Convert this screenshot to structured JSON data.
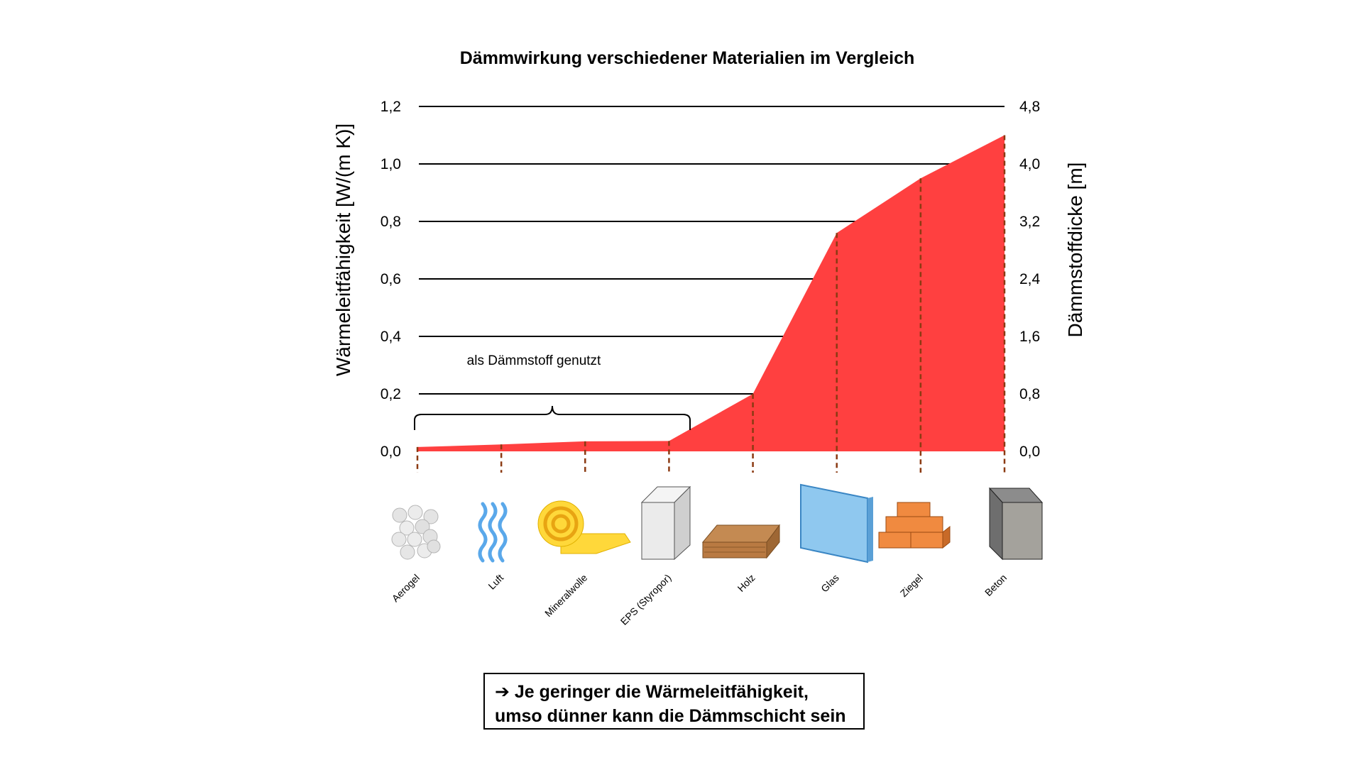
{
  "chart_data": {
    "type": "area",
    "title": "Dämmwirkung verschiedener Materialien im Vergleich",
    "ylabel": "Wärmeleitfähigkeit [W/(m K)]",
    "y2label": "Dämmstoffdicke [m]",
    "ylim": [
      0,
      1.2
    ],
    "y2lim": [
      0,
      4.8
    ],
    "yticks": [
      "0,0",
      "0,2",
      "0,4",
      "0,6",
      "0,8",
      "1,0",
      "1,2"
    ],
    "y2ticks": [
      "0,0",
      "0,8",
      "1,6",
      "2,4",
      "3,2",
      "4,0",
      "4,8"
    ],
    "grid": true,
    "color": "#ff4040",
    "categories": [
      "Aerogel",
      "Luft",
      "Mineralwolle",
      "EPS (Styropor)",
      "Holz",
      "Glas",
      "Ziegel",
      "Beton"
    ],
    "values": [
      0.015,
      0.024,
      0.035,
      0.036,
      0.2,
      0.76,
      0.95,
      1.1
    ],
    "annotation": "als Dämmstoff genutzt",
    "annotation_range": [
      "Aerogel",
      "EPS (Styropor)"
    ]
  },
  "material_icons": [
    "aerogel-icon",
    "air-waves-icon",
    "mineral-wool-roll-icon",
    "eps-block-icon",
    "wood-board-icon",
    "glass-pane-icon",
    "brick-stack-icon",
    "concrete-block-icon"
  ],
  "note": {
    "line1": "➔ Je geringer die Wärmeleitfähigkeit,",
    "line2": "umso dünner kann die Dämmschicht sein"
  }
}
